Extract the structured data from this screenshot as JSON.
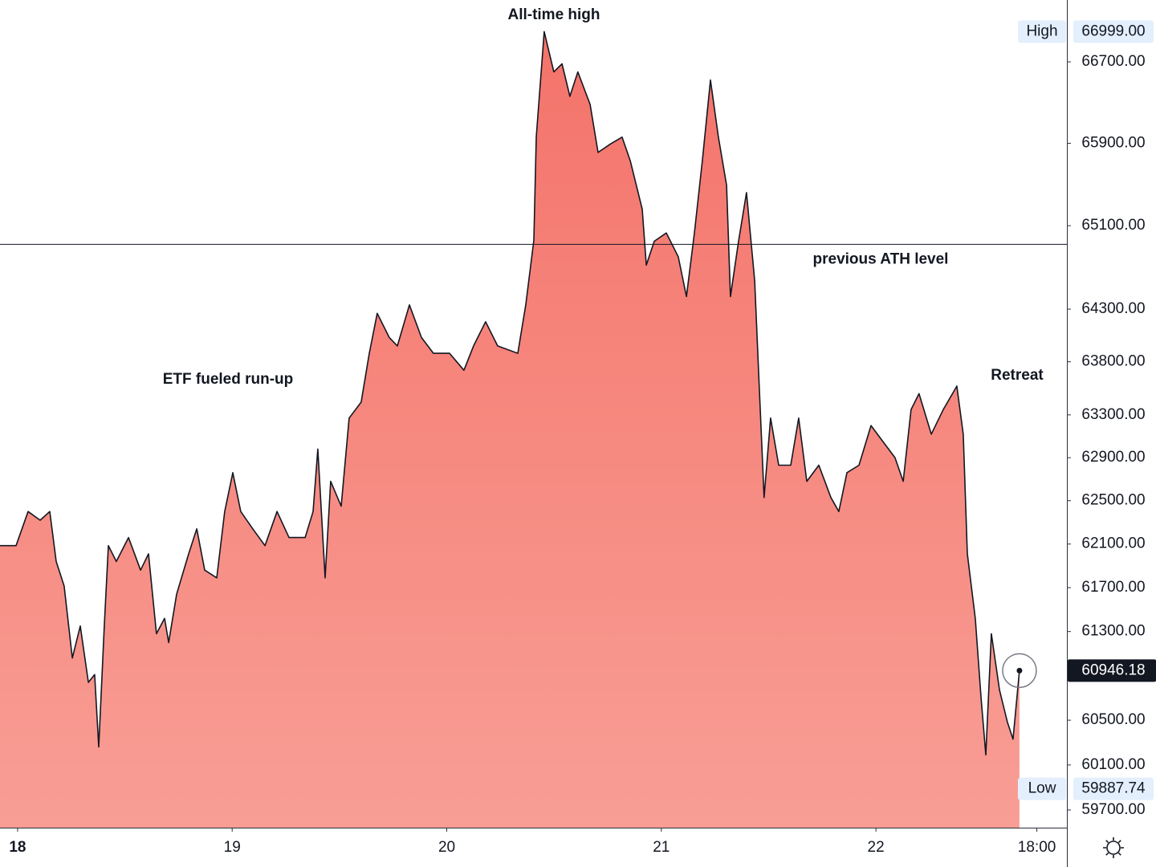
{
  "chart_data": {
    "type": "area",
    "yscale": "log",
    "color": "#131722",
    "fill_top": "#f4736a",
    "fill_bottom": "#f89e95",
    "x": [
      17.918,
      17.993,
      18.049,
      18.105,
      18.15,
      18.18,
      18.217,
      18.255,
      18.292,
      18.33,
      18.359,
      18.378,
      18.404,
      18.423,
      18.46,
      18.517,
      18.573,
      18.61,
      18.647,
      18.685,
      18.704,
      18.741,
      18.797,
      18.835,
      18.872,
      18.928,
      18.965,
      19.003,
      19.04,
      19.096,
      19.153,
      19.209,
      19.265,
      19.34,
      19.377,
      19.399,
      19.433,
      19.459,
      19.508,
      19.545,
      19.601,
      19.639,
      19.676,
      19.732,
      19.77,
      19.826,
      19.882,
      19.938,
      20.013,
      20.08,
      20.125,
      20.181,
      20.237,
      20.331,
      20.368,
      20.406,
      20.417,
      20.454,
      20.499,
      20.537,
      20.574,
      20.611,
      20.668,
      20.705,
      20.761,
      20.817,
      20.855,
      20.911,
      20.93,
      20.967,
      21.023,
      21.079,
      21.117,
      21.154,
      21.191,
      21.229,
      21.266,
      21.304,
      21.322,
      21.36,
      21.397,
      21.435,
      21.453,
      21.479,
      21.509,
      21.547,
      21.603,
      21.64,
      21.678,
      21.734,
      21.79,
      21.827,
      21.865,
      21.921,
      21.977,
      22.033,
      22.089,
      22.127,
      22.164,
      22.201,
      22.258,
      22.314,
      22.377,
      22.407,
      22.426,
      22.463,
      22.49,
      22.512,
      22.538,
      22.576,
      22.613,
      22.639,
      22.669
    ],
    "values": [
      62085,
      62085,
      62400,
      62320,
      62400,
      61940,
      61715,
      61060,
      61350,
      60840,
      60910,
      60260,
      61350,
      62085,
      61940,
      62160,
      61860,
      62010,
      61280,
      61420,
      61200,
      61640,
      62010,
      62240,
      61860,
      61790,
      62400,
      62760,
      62400,
      62240,
      62085,
      62400,
      62160,
      62160,
      62400,
      62980,
      61790,
      62680,
      62450,
      63270,
      63420,
      63880,
      64260,
      64030,
      63950,
      64340,
      64030,
      63880,
      63880,
      63720,
      63950,
      64180,
      63950,
      63880,
      64340,
      64960,
      65960,
      66999,
      66600,
      66680,
      66360,
      66600,
      66280,
      65810,
      65890,
      65960,
      65730,
      65260,
      64720,
      64950,
      65030,
      64800,
      64420,
      65030,
      65730,
      66520,
      65960,
      65490,
      64420,
      64950,
      65420,
      64570,
      63720,
      62530,
      63270,
      62830,
      62830,
      63270,
      62680,
      62830,
      62530,
      62400,
      62760,
      62830,
      63200,
      63050,
      62900,
      62680,
      63350,
      63500,
      63120,
      63350,
      63570,
      63120,
      62010,
      61420,
      60700,
      60190,
      61280,
      60770,
      60480,
      60330,
      60946.18
    ],
    "xlim": [
      17.918,
      22.89
    ],
    "xticks": [
      18,
      19,
      20,
      21,
      22,
      {
        "value": 22.75,
        "label": "18:00"
      }
    ],
    "ylim": [
      59544,
      67314
    ],
    "yticks": [
      {
        "value": 59700,
        "label": "59700.00"
      },
      {
        "value": 60100,
        "label": "60100.00"
      },
      {
        "value": 60500,
        "label": "60500.00"
      },
      {
        "value": 61300,
        "label": "61300.00"
      },
      {
        "value": 61700,
        "label": "61700.00"
      },
      {
        "value": 62100,
        "label": "62100.00"
      },
      {
        "value": 62500,
        "label": "62500.00"
      },
      {
        "value": 62900,
        "label": "62900.00"
      },
      {
        "value": 63300,
        "label": "63300.00"
      },
      {
        "value": 63800,
        "label": "63800.00"
      },
      {
        "value": 64300,
        "label": "64300.00"
      },
      {
        "value": 65100,
        "label": "65100.00"
      },
      {
        "value": 65900,
        "label": "65900.00"
      },
      {
        "value": 66700,
        "label": "66700.00"
      }
    ],
    "high": {
      "name": "High",
      "value": 66999,
      "label": "66999.00"
    },
    "low": {
      "name": "Low",
      "value": 59887.74,
      "label": "59887.74"
    },
    "last_price": 60946.18,
    "reference_line": {
      "value": 64920,
      "label": "previous ATH level"
    },
    "annotations": [
      "All-time high",
      "ETF fueled run-up",
      "Retreat"
    ]
  }
}
